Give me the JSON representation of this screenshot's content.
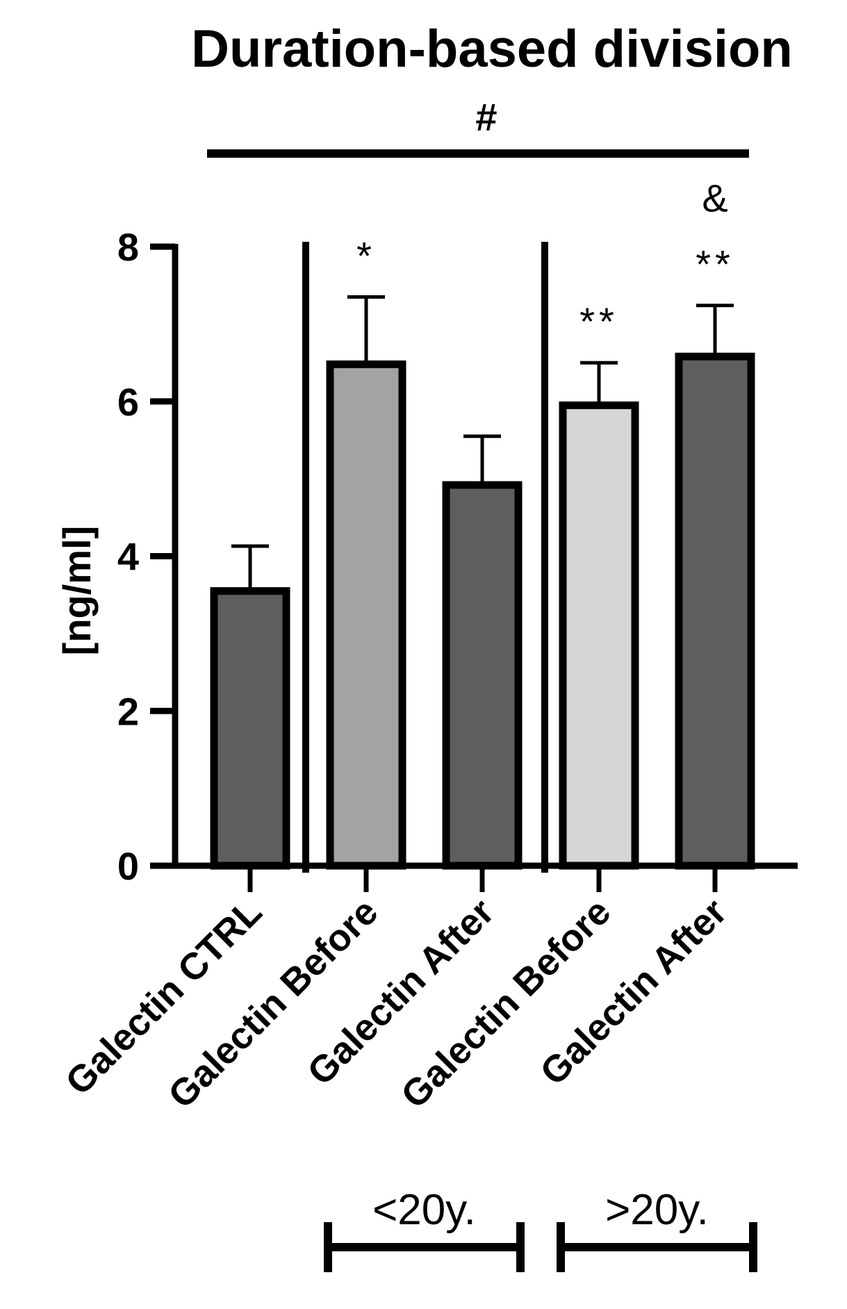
{
  "chart_data": {
    "type": "bar",
    "title": "Duration-based division",
    "ylabel": "[ng/ml]",
    "xlabel": "",
    "ylim": [
      0,
      8
    ],
    "yticks": [
      0,
      2,
      4,
      6,
      8
    ],
    "categories": [
      "Galectin CTRL",
      "Galectin Before",
      "Galectin After",
      "Galectin Before",
      "Galectin After"
    ],
    "values": [
      3.55,
      6.48,
      4.92,
      5.95,
      6.58
    ],
    "errors": [
      0.58,
      0.87,
      0.63,
      0.55,
      0.66
    ],
    "colors": [
      "#5e5e5e",
      "#a3a3a5",
      "#5e5e5e",
      "#d6d6d6",
      "#5e5e5e"
    ],
    "significance": [
      "",
      "*",
      "",
      "**",
      "**"
    ],
    "extra_marks": [
      "",
      "",
      "",
      "",
      "&"
    ],
    "overall_mark": "#",
    "groups": [
      {
        "label": "<20y.",
        "categories": [
          1,
          2
        ]
      },
      {
        "label": ">20y.",
        "categories": [
          3,
          4
        ]
      }
    ],
    "grid": false,
    "legend": "none"
  }
}
